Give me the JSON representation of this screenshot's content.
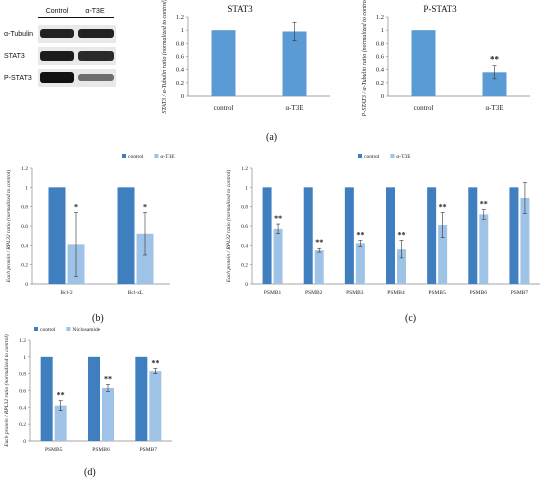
{
  "blot": {
    "columns": [
      "Control",
      "α-T3E"
    ],
    "rows": [
      {
        "label": "α-Tubulin",
        "intensity": [
          0.95,
          0.95
        ]
      },
      {
        "label": "STAT3",
        "intensity": [
          0.9,
          0.85
        ]
      },
      {
        "label": "P-STAT3",
        "intensity": [
          0.95,
          0.45
        ]
      }
    ]
  },
  "panel_letters": {
    "a": "(a)",
    "b": "(b)",
    "c": "(c)",
    "d": "(d)"
  },
  "chart_data": [
    {
      "id": "stat3",
      "type": "bar",
      "title": "STAT3",
      "categories": [
        "control",
        "α-T3E"
      ],
      "values": [
        1.0,
        0.98
      ],
      "errors": [
        0,
        0.14
      ],
      "annotations": [
        "",
        ""
      ],
      "ylabel": "STAT3 / α-Tubulin ratio (normalized to control)",
      "ylim": [
        0,
        1.2
      ],
      "yticks": [
        "0",
        "0.2",
        "0.4",
        "0.6",
        "0.8",
        "1",
        "1.2"
      ],
      "legend": [],
      "colors": [
        "#5b9bd5"
      ],
      "grid": false
    },
    {
      "id": "pstat3",
      "type": "bar",
      "title": "P-STAT3",
      "categories": [
        "control",
        "α-T3E"
      ],
      "values": [
        1.0,
        0.36
      ],
      "errors": [
        0,
        0.1
      ],
      "annotations": [
        "",
        "**"
      ],
      "ylabel": "P-STAT3 / α-Tubulin ratio (normalized to control)",
      "ylim": [
        0,
        1.2
      ],
      "yticks": [
        "0",
        "0.2",
        "0.4",
        "0.6",
        "0.8",
        "1",
        "1.2"
      ],
      "legend": [],
      "colors": [
        "#5b9bd5"
      ],
      "grid": false
    },
    {
      "id": "bcl",
      "type": "bar",
      "title": "",
      "categories": [
        "Bcl-2",
        "Bcl-xL"
      ],
      "series": [
        {
          "name": "control",
          "values": [
            1.0,
            1.0
          ],
          "errors": [
            0,
            0
          ],
          "annotations": [
            "",
            ""
          ]
        },
        {
          "name": "α-T3E",
          "values": [
            0.41,
            0.52
          ],
          "errors": [
            0.33,
            0.22
          ],
          "annotations": [
            "*",
            "*"
          ]
        }
      ],
      "ylabel": "Each protein / RPL32 ratio (normalized to control)",
      "ylim": [
        0,
        1.2
      ],
      "yticks": [
        "0",
        "0.2",
        "0.4",
        "0.6",
        "0.8",
        "1",
        "1.2"
      ],
      "legend_position": "top-right",
      "colors": [
        "#3f7fbf",
        "#9fc3e7"
      ],
      "grid": false
    },
    {
      "id": "psmb",
      "type": "bar",
      "title": "",
      "categories": [
        "PSMB1",
        "PSMB2",
        "PSMB3",
        "PSMB4",
        "PSMB5",
        "PSMB6",
        "PSMB7"
      ],
      "series": [
        {
          "name": "control",
          "values": [
            1,
            1,
            1,
            1,
            1,
            1,
            1
          ],
          "errors": [
            0,
            0,
            0,
            0,
            0,
            0,
            0
          ],
          "annotations": [
            "",
            "",
            "",
            "",
            "",
            "",
            ""
          ]
        },
        {
          "name": "α-T3E",
          "values": [
            0.57,
            0.35,
            0.42,
            0.36,
            0.61,
            0.72,
            0.89
          ],
          "errors": [
            0.05,
            0.02,
            0.03,
            0.09,
            0.13,
            0.05,
            0.16
          ],
          "annotations": [
            "**",
            "**",
            "**",
            "**",
            "**",
            "**",
            ""
          ]
        }
      ],
      "ylabel": "Each protein / RPL32 ratio (normalized to control)",
      "ylim": [
        0,
        1.2
      ],
      "yticks": [
        "0",
        "0.2",
        "0.4",
        "0.6",
        "0.8",
        "1",
        "1.2"
      ],
      "legend_position": "top-left",
      "colors": [
        "#3f7fbf",
        "#9fc3e7"
      ],
      "grid": false
    },
    {
      "id": "psmb_niclosamide",
      "type": "bar",
      "title": "",
      "categories": [
        "PSMB5",
        "PSMB6",
        "PSMB7"
      ],
      "series": [
        {
          "name": "control",
          "values": [
            1,
            1,
            1
          ],
          "errors": [
            0,
            0,
            0
          ],
          "annotations": [
            "",
            "",
            ""
          ]
        },
        {
          "name": "Niclosamide",
          "values": [
            0.42,
            0.63,
            0.83
          ],
          "errors": [
            0.06,
            0.04,
            0.03
          ],
          "annotations": [
            "**",
            "**",
            "**"
          ]
        }
      ],
      "ylabel": "Each protein / RPL32 ratio (normalized to control)",
      "ylim": [
        0,
        1.2
      ],
      "yticks": [
        "0",
        "0.2",
        "0.4",
        "0.6",
        "0.8",
        "1",
        "1.2"
      ],
      "legend_position": "top-left",
      "colors": [
        "#3f7fbf",
        "#9fc3e7"
      ],
      "grid": false
    }
  ]
}
